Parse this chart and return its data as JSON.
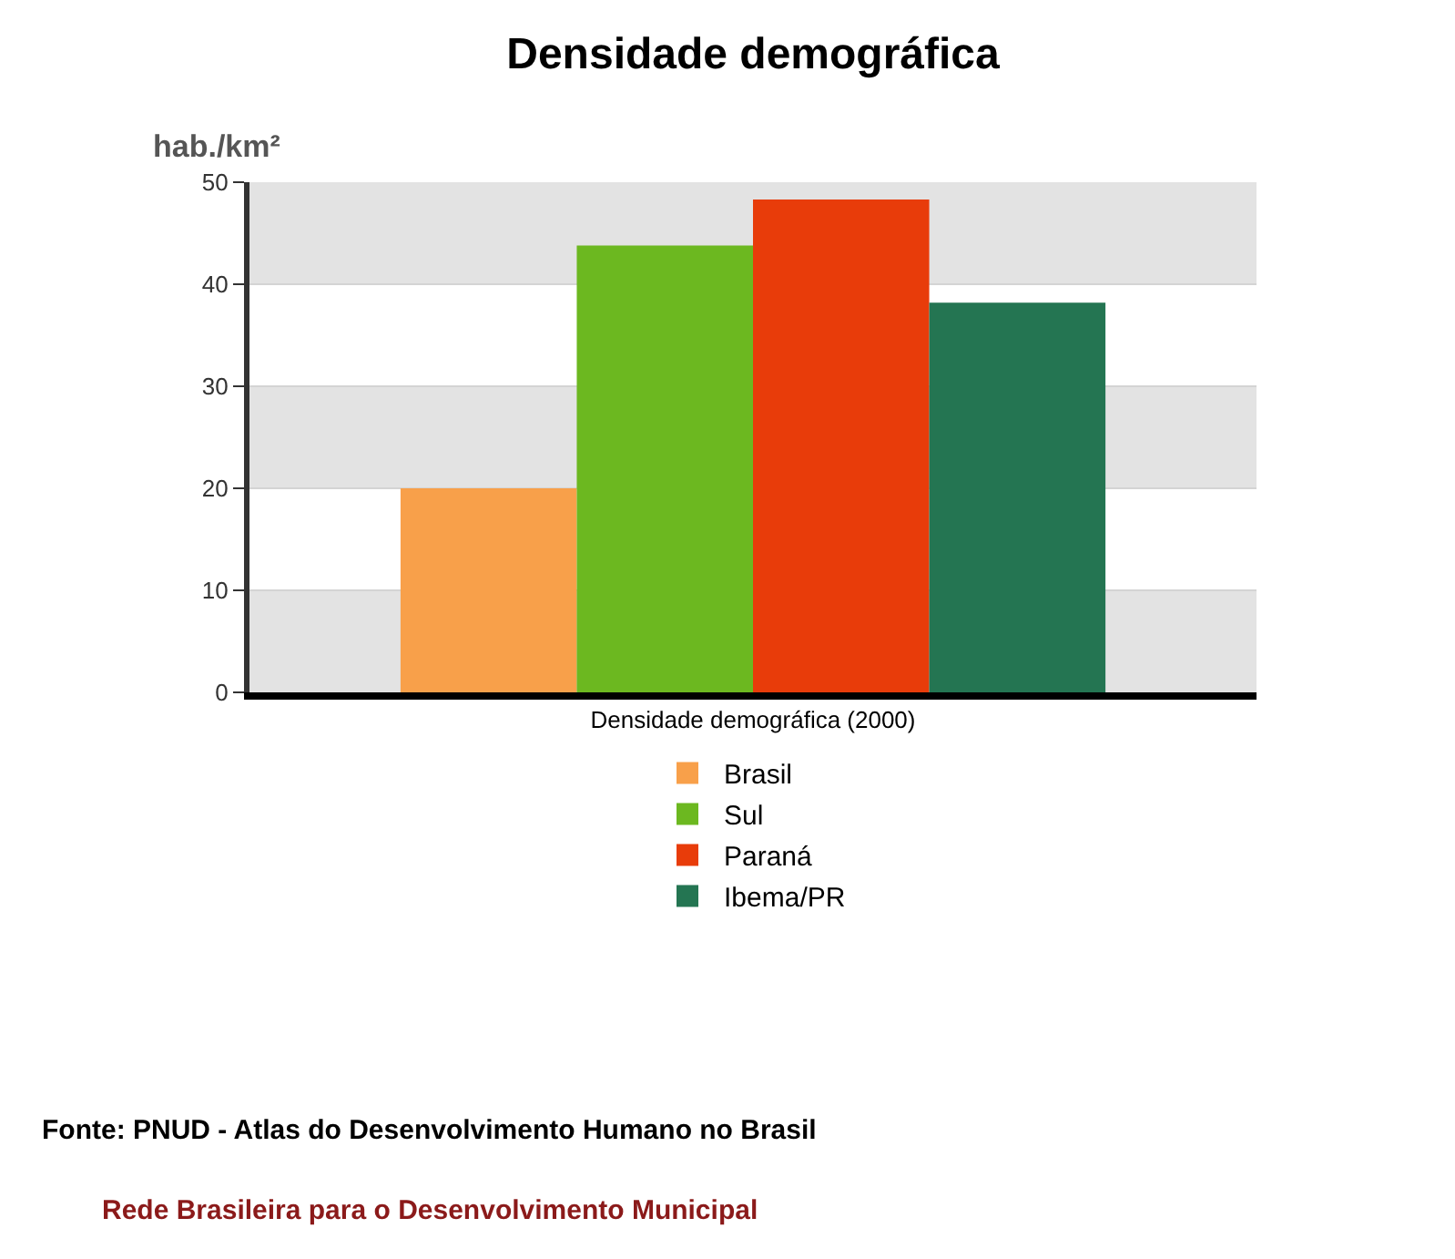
{
  "chart_data": {
    "type": "bar",
    "title": "Densidade demográfica",
    "ylabel": "hab./km²",
    "categories": [
      "Densidade demográfica (2000)"
    ],
    "series": [
      {
        "name": "Brasil",
        "color": "#f8a04a",
        "values": [
          20.0
        ]
      },
      {
        "name": "Sul",
        "color": "#6cb820",
        "values": [
          43.8
        ]
      },
      {
        "name": "Paraná",
        "color": "#e83c0a",
        "values": [
          48.3
        ]
      },
      {
        "name": "Ibema/PR",
        "color": "#247552",
        "values": [
          38.2
        ]
      }
    ],
    "ylim": [
      0,
      50
    ],
    "yticks": [
      0,
      10,
      20,
      30,
      40,
      50
    ],
    "grid": true,
    "legend": "bottom",
    "annotations": [
      "Fonte: PNUD - Atlas do Desenvolvimento Humano no Brasil",
      "Rede Brasileira para o Desenvolvimento Municipal"
    ]
  }
}
